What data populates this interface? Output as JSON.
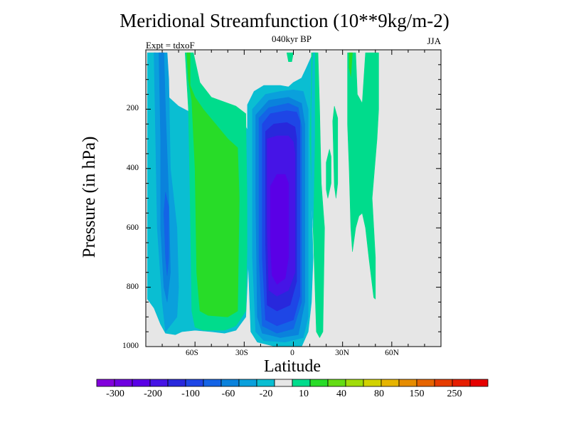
{
  "chart_data": {
    "type": "contour",
    "title": "Meridional Streamfunction (10**9kg/m-2)",
    "subtitle": "040kyr BP",
    "experiment": "Expt = tdxoF",
    "season": "JJA",
    "xlabel": "Latitude",
    "ylabel": "Pressure (in hPa)",
    "xlim": [
      -90,
      90
    ],
    "ylim": [
      0,
      1000
    ],
    "x_ticks": [
      {
        "value": -60,
        "label": "60S"
      },
      {
        "value": -30,
        "label": "30S"
      },
      {
        "value": 0,
        "label": "0"
      },
      {
        "value": 30,
        "label": "30N"
      },
      {
        "value": 60,
        "label": "60N"
      }
    ],
    "y_ticks": [
      {
        "value": 200,
        "label": "200"
      },
      {
        "value": 400,
        "label": "400"
      },
      {
        "value": 600,
        "label": "600"
      },
      {
        "value": 800,
        "label": "800"
      },
      {
        "value": 1000,
        "label": "1000"
      }
    ],
    "background_color": "#e6e6e6",
    "colorbar": {
      "colors": [
        "#8200dc",
        "#6e00e0",
        "#5a00e6",
        "#4614e6",
        "#2828dc",
        "#1e46e6",
        "#1464e6",
        "#0a82dc",
        "#0aa0dc",
        "#0abed2",
        "#e6e6e6",
        "#00dc8c",
        "#28dc28",
        "#64dc14",
        "#a0dc0a",
        "#d2d200",
        "#e6b400",
        "#e68c00",
        "#e66400",
        "#e63c00",
        "#e61e00",
        "#e60000"
      ],
      "labels": [
        "-300",
        "-200",
        "-100",
        "-60",
        "-20",
        "10",
        "40",
        "80",
        "150",
        "250"
      ],
      "label_edges": [
        1,
        3,
        5,
        7,
        9,
        11,
        13,
        15,
        17,
        19
      ]
    },
    "regions": [
      {
        "name": "sh-cell-outer",
        "color": "#0abed2",
        "points": [
          [
            -89,
            10
          ],
          [
            -84,
            10
          ],
          [
            -82,
            60
          ],
          [
            -80,
            120
          ],
          [
            -76,
            160
          ],
          [
            -70,
            190
          ],
          [
            -63,
            210
          ],
          [
            -55,
            220
          ],
          [
            -40,
            240
          ],
          [
            -30,
            250
          ],
          [
            -27,
            280
          ],
          [
            -27,
            650
          ],
          [
            -29,
            900
          ],
          [
            -35,
            945
          ],
          [
            -42,
            955
          ],
          [
            -50,
            950
          ],
          [
            -60,
            945
          ],
          [
            -68,
            950
          ],
          [
            -72,
            960
          ],
          [
            -78,
            955
          ],
          [
            -81,
            925
          ],
          [
            -85,
            870
          ],
          [
            -89,
            840
          ]
        ]
      },
      {
        "name": "sh-cell-2",
        "color": "#0aa0dc",
        "points": [
          [
            -85,
            10
          ],
          [
            -77,
            10
          ],
          [
            -76,
            100
          ],
          [
            -75,
            400
          ],
          [
            -71,
            600
          ],
          [
            -70,
            800
          ],
          [
            -71,
            900
          ],
          [
            -78,
            950
          ],
          [
            -80,
            850
          ],
          [
            -83,
            600
          ],
          [
            -84,
            300
          ]
        ]
      },
      {
        "name": "sh-cell-3",
        "color": "#0a82dc",
        "points": [
          [
            -82,
            10
          ],
          [
            -79,
            10
          ],
          [
            -78,
            200
          ],
          [
            -76,
            500
          ],
          [
            -75,
            750
          ],
          [
            -77,
            850
          ],
          [
            -79,
            800
          ],
          [
            -81,
            600
          ],
          [
            -81,
            300
          ]
        ]
      },
      {
        "name": "sh-cell-4",
        "color": "#1464e6",
        "points": [
          [
            -78,
            480
          ],
          [
            -76,
            530
          ],
          [
            -76,
            700
          ],
          [
            -77,
            760
          ],
          [
            -78,
            700
          ],
          [
            -79,
            550
          ]
        ]
      },
      {
        "name": "sh-positive-outer",
        "color": "#00dc8c",
        "points": [
          [
            -66,
            10
          ],
          [
            -61,
            10
          ],
          [
            -57,
            110
          ],
          [
            -50,
            160
          ],
          [
            -35,
            190
          ],
          [
            -29,
            215
          ],
          [
            -28,
            600
          ],
          [
            -29,
            880
          ],
          [
            -35,
            930
          ],
          [
            -42,
            945
          ],
          [
            -55,
            945
          ],
          [
            -60,
            935
          ],
          [
            -62,
            880
          ],
          [
            -63,
            500
          ],
          [
            -64,
            200
          ]
        ]
      },
      {
        "name": "sh-positive-inner",
        "color": "#28dc28",
        "points": [
          [
            -65,
            10
          ],
          [
            -63,
            10
          ],
          [
            -63,
            120
          ],
          [
            -60,
            160
          ],
          [
            -55,
            200
          ],
          [
            -40,
            300
          ],
          [
            -34,
            330
          ],
          [
            -33,
            500
          ],
          [
            -34,
            880
          ],
          [
            -40,
            900
          ],
          [
            -52,
            895
          ],
          [
            -57,
            880
          ],
          [
            -59,
            750
          ],
          [
            -60,
            400
          ],
          [
            -62,
            170
          ],
          [
            -64,
            100
          ]
        ]
      },
      {
        "name": "equatorial-cell-1",
        "color": "#0abed2",
        "points": [
          [
            -28,
            390
          ],
          [
            -28,
            185
          ],
          [
            -24,
            140
          ],
          [
            -18,
            120
          ],
          [
            -8,
            120
          ],
          [
            -3,
            125
          ],
          [
            0,
            110
          ],
          [
            5,
            95
          ],
          [
            8,
            60
          ],
          [
            12,
            10
          ],
          [
            14,
            10
          ],
          [
            14,
            200
          ],
          [
            12,
            300
          ],
          [
            11,
            500
          ],
          [
            12,
            700
          ],
          [
            11,
            850
          ],
          [
            9,
            950
          ],
          [
            5,
            1000
          ],
          [
            -11,
            1000
          ],
          [
            -22,
            985
          ],
          [
            -26,
            950
          ],
          [
            -27,
            800
          ],
          [
            -28,
            650
          ]
        ]
      },
      {
        "name": "equatorial-cell-2",
        "color": "#0aa0dc",
        "points": [
          [
            -25,
            200
          ],
          [
            -17,
            150
          ],
          [
            -8,
            140
          ],
          [
            0,
            135
          ],
          [
            6,
            140
          ],
          [
            9,
            200
          ],
          [
            9,
            500
          ],
          [
            9,
            900
          ],
          [
            6,
            970
          ],
          [
            -5,
            985
          ],
          [
            -18,
            980
          ],
          [
            -23,
            950
          ],
          [
            -25,
            700
          ]
        ]
      },
      {
        "name": "equatorial-cell-3",
        "color": "#0a82dc",
        "points": [
          [
            -23,
            220
          ],
          [
            -15,
            170
          ],
          [
            -3,
            160
          ],
          [
            5,
            180
          ],
          [
            7,
            250
          ],
          [
            7,
            850
          ],
          [
            3,
            960
          ],
          [
            -8,
            970
          ],
          [
            -19,
            955
          ],
          [
            -22,
            900
          ],
          [
            -23,
            500
          ]
        ]
      },
      {
        "name": "equatorial-cell-4",
        "color": "#1464e6",
        "points": [
          [
            -21,
            230
          ],
          [
            -15,
            195
          ],
          [
            -3,
            180
          ],
          [
            3,
            195
          ],
          [
            5,
            260
          ],
          [
            5,
            850
          ],
          [
            0,
            940
          ],
          [
            -10,
            955
          ],
          [
            -19,
            930
          ],
          [
            -21,
            700
          ],
          [
            -21,
            400
          ]
        ]
      },
      {
        "name": "equatorial-cell-5",
        "color": "#1e46e6",
        "points": [
          [
            -19,
            250
          ],
          [
            -14,
            215
          ],
          [
            -4,
            205
          ],
          [
            2,
            210
          ],
          [
            4,
            240
          ],
          [
            4,
            830
          ],
          [
            0,
            910
          ],
          [
            -10,
            930
          ],
          [
            -17,
            910
          ],
          [
            -19,
            700
          ],
          [
            -19,
            400
          ]
        ]
      },
      {
        "name": "equatorial-cell-6",
        "color": "#2828dc",
        "points": [
          [
            -17,
            275
          ],
          [
            -12,
            250
          ],
          [
            -4,
            245
          ],
          [
            1,
            260
          ],
          [
            2,
            300
          ],
          [
            2,
            780
          ],
          [
            -2,
            860
          ],
          [
            -10,
            880
          ],
          [
            -16,
            860
          ],
          [
            -17,
            650
          ]
        ]
      },
      {
        "name": "equatorial-cell-7",
        "color": "#4614e6",
        "points": [
          [
            -16,
            300
          ],
          [
            -10,
            290
          ],
          [
            -3,
            290
          ],
          [
            0,
            310
          ],
          [
            1,
            350
          ],
          [
            1,
            750
          ],
          [
            -3,
            810
          ],
          [
            -10,
            830
          ],
          [
            -15,
            810
          ],
          [
            -16,
            600
          ]
        ]
      },
      {
        "name": "equatorial-cell-8",
        "color": "#5a00e6",
        "points": [
          [
            -14,
            460
          ],
          [
            -10,
            420
          ],
          [
            -5,
            420
          ],
          [
            -3,
            450
          ],
          [
            -3,
            700
          ],
          [
            -5,
            770
          ],
          [
            -10,
            790
          ],
          [
            -13,
            760
          ],
          [
            -14,
            650
          ]
        ]
      },
      {
        "name": "nh-top-positive",
        "color": "#00dc8c",
        "points": [
          [
            -4,
            10
          ],
          [
            0,
            10
          ],
          [
            -1,
            40
          ],
          [
            -3,
            40
          ]
        ]
      },
      {
        "name": "nh-streak-1",
        "color": "#00dc8c",
        "points": [
          [
            20,
            380
          ],
          [
            22,
            335
          ],
          [
            23,
            360
          ],
          [
            23,
            450
          ],
          [
            21,
            500
          ],
          [
            20,
            470
          ]
        ]
      },
      {
        "name": "nh-streak-2",
        "color": "#00dc8c",
        "points": [
          [
            24,
            240
          ],
          [
            25,
            190
          ],
          [
            27,
            230
          ],
          [
            27,
            450
          ],
          [
            26,
            500
          ],
          [
            25,
            460
          ]
        ]
      },
      {
        "name": "nh-main-positive",
        "color": "#00dc8c",
        "points": [
          [
            33,
            10
          ],
          [
            38,
            10
          ],
          [
            39,
            150
          ],
          [
            42,
            180
          ],
          [
            44,
            10
          ],
          [
            52,
            10
          ],
          [
            52,
            200
          ],
          [
            51,
            300
          ],
          [
            48,
            500
          ],
          [
            49,
            600
          ],
          [
            50,
            700
          ],
          [
            50,
            840
          ],
          [
            49,
            835
          ],
          [
            46,
            700
          ],
          [
            44,
            600
          ],
          [
            42,
            550
          ],
          [
            40,
            560
          ],
          [
            38,
            600
          ],
          [
            36,
            680
          ],
          [
            35,
            600
          ],
          [
            34,
            400
          ],
          [
            33,
            250
          ]
        ]
      },
      {
        "name": "nh-inner-positive",
        "color": "#28dc28",
        "points": [
          [
            34,
            10
          ],
          [
            36,
            10
          ],
          [
            35,
            90
          ],
          [
            34,
            60
          ]
        ]
      },
      {
        "name": "nh-left-cells",
        "color": "#00dc8c",
        "points": [
          [
            11,
            10
          ],
          [
            15,
            10
          ],
          [
            16,
            200
          ],
          [
            17,
            450
          ],
          [
            19,
            600
          ],
          [
            18,
            950
          ],
          [
            16,
            970
          ],
          [
            14,
            950
          ],
          [
            12,
            600
          ],
          [
            10,
            300
          ],
          [
            11,
            100
          ]
        ]
      },
      {
        "name": "nh-left-inner",
        "color": "#0abed2",
        "points": [
          [
            12,
            10
          ],
          [
            13,
            10
          ],
          [
            13,
            300
          ],
          [
            12,
            600
          ],
          [
            11,
            500
          ],
          [
            11,
            200
          ]
        ]
      }
    ]
  }
}
